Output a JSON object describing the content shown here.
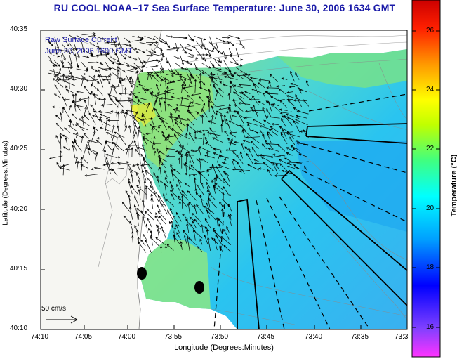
{
  "title": "RU COOL  NOAA–17  Sea Surface Temperature:  June 30, 2006 1634 GMT",
  "overlay": {
    "line1": "Raw Surface Current",
    "line2": "June 30, 2006 1600 GMT"
  },
  "axes": {
    "xlabel": "Longitude (Degrees:Minutes)",
    "ylabel": "Latitude (Degrees:Minutes)",
    "x_ticks": [
      "74:10",
      "74:05",
      "74:00",
      "73:55",
      "73:50",
      "73:45",
      "73:40",
      "73:35",
      "73:3"
    ],
    "y_ticks": [
      "40:35",
      "40:30",
      "40:25",
      "40:20",
      "40:15",
      "40:10"
    ]
  },
  "colorbar": {
    "label": "Temperature (°C)",
    "ticks": [
      "26",
      "24",
      "22",
      "20",
      "18",
      "16"
    ],
    "range": [
      15.2,
      27.2
    ]
  },
  "scale": {
    "label": "50 cm/s"
  },
  "colors": {
    "title": "#1a1aa8",
    "land": "#f6f6f2",
    "arrow": "#000000"
  }
}
